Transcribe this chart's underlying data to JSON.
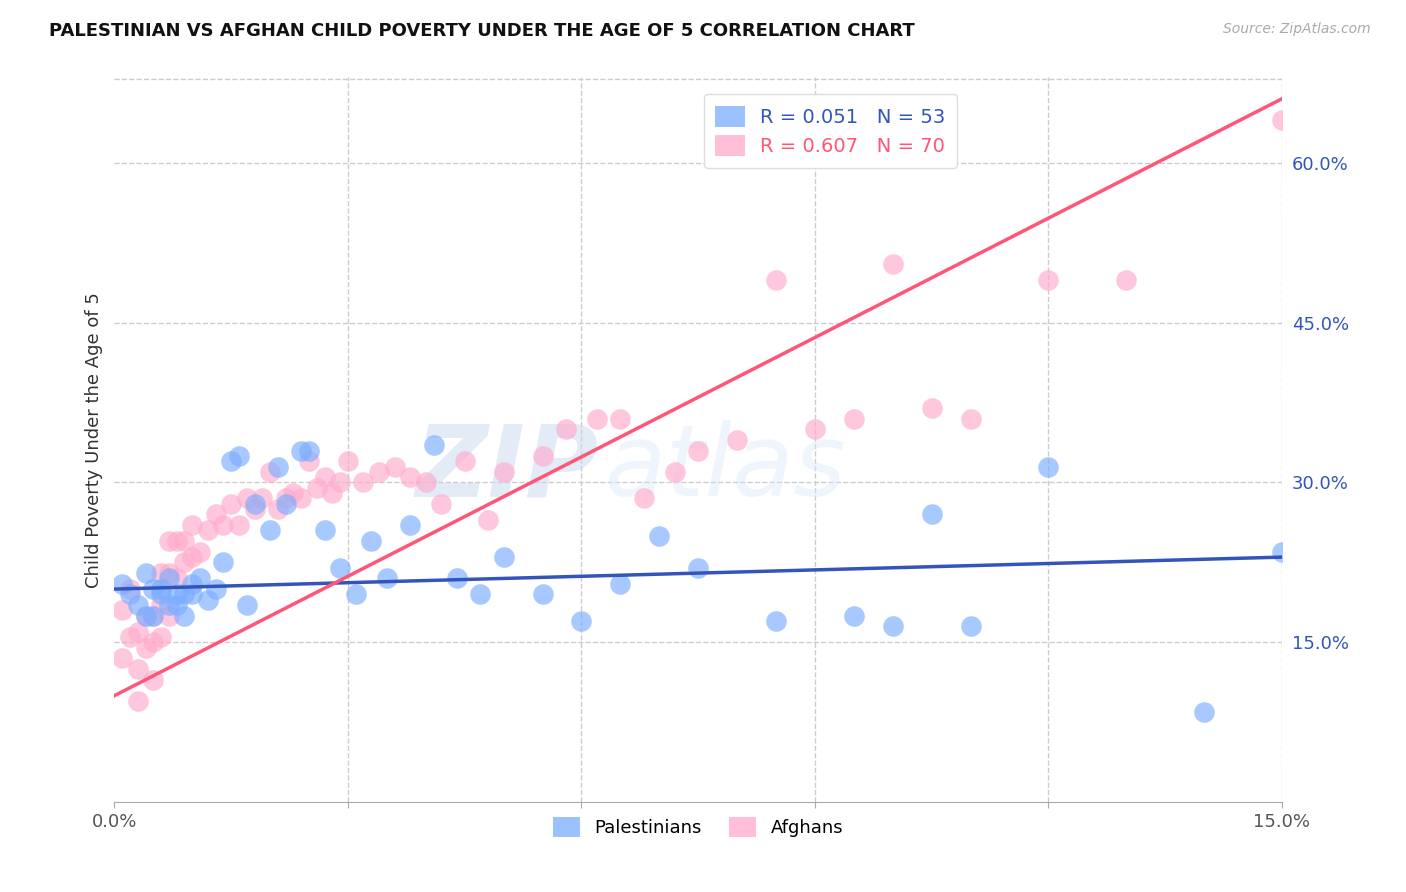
{
  "title": "PALESTINIAN VS AFGHAN CHILD POVERTY UNDER THE AGE OF 5 CORRELATION CHART",
  "source": "Source: ZipAtlas.com",
  "ylabel": "Child Poverty Under the Age of 5",
  "xmin": 0.0,
  "xmax": 0.15,
  "ymin": 0.0,
  "ymax": 0.68,
  "ytick_labels_right": [
    "15.0%",
    "30.0%",
    "45.0%",
    "60.0%"
  ],
  "ytick_vals_right": [
    0.15,
    0.3,
    0.45,
    0.6
  ],
  "grid_color": "#cccccc",
  "background_color": "#ffffff",
  "blue_color": "#7aadff",
  "pink_color": "#ffaacc",
  "line_blue": "#3355bb",
  "line_pink": "#ff5577",
  "legend_r_blue": "R = 0.051",
  "legend_n_blue": "N = 53",
  "legend_r_pink": "R = 0.607",
  "legend_n_pink": "N = 70",
  "watermark_zip": "ZIP",
  "watermark_atlas": "atlas",
  "palestinians_label": "Palestinians",
  "afghans_label": "Afghans",
  "palestinians_x": [
    0.001,
    0.002,
    0.003,
    0.004,
    0.004,
    0.005,
    0.005,
    0.006,
    0.006,
    0.007,
    0.007,
    0.008,
    0.008,
    0.009,
    0.009,
    0.01,
    0.01,
    0.011,
    0.012,
    0.013,
    0.014,
    0.015,
    0.016,
    0.017,
    0.018,
    0.02,
    0.021,
    0.022,
    0.024,
    0.025,
    0.027,
    0.029,
    0.031,
    0.033,
    0.035,
    0.038,
    0.041,
    0.044,
    0.047,
    0.05,
    0.055,
    0.06,
    0.065,
    0.07,
    0.075,
    0.085,
    0.095,
    0.1,
    0.105,
    0.11,
    0.12,
    0.14,
    0.15
  ],
  "palestinians_y": [
    0.205,
    0.195,
    0.185,
    0.175,
    0.215,
    0.175,
    0.2,
    0.195,
    0.2,
    0.21,
    0.185,
    0.185,
    0.195,
    0.195,
    0.175,
    0.195,
    0.205,
    0.21,
    0.19,
    0.2,
    0.225,
    0.32,
    0.325,
    0.185,
    0.28,
    0.255,
    0.315,
    0.28,
    0.33,
    0.33,
    0.255,
    0.22,
    0.195,
    0.245,
    0.21,
    0.26,
    0.335,
    0.21,
    0.195,
    0.23,
    0.195,
    0.17,
    0.205,
    0.25,
    0.22,
    0.17,
    0.175,
    0.165,
    0.27,
    0.165,
    0.315,
    0.085,
    0.235
  ],
  "afghans_x": [
    0.001,
    0.001,
    0.002,
    0.002,
    0.003,
    0.003,
    0.003,
    0.004,
    0.004,
    0.005,
    0.005,
    0.005,
    0.006,
    0.006,
    0.006,
    0.007,
    0.007,
    0.007,
    0.008,
    0.008,
    0.009,
    0.009,
    0.01,
    0.01,
    0.011,
    0.012,
    0.013,
    0.014,
    0.015,
    0.016,
    0.017,
    0.018,
    0.019,
    0.02,
    0.021,
    0.022,
    0.023,
    0.024,
    0.025,
    0.026,
    0.027,
    0.028,
    0.029,
    0.03,
    0.032,
    0.034,
    0.036,
    0.038,
    0.04,
    0.042,
    0.045,
    0.048,
    0.05,
    0.055,
    0.058,
    0.062,
    0.065,
    0.068,
    0.072,
    0.075,
    0.08,
    0.085,
    0.09,
    0.095,
    0.1,
    0.105,
    0.11,
    0.12,
    0.13,
    0.15
  ],
  "afghans_y": [
    0.18,
    0.135,
    0.2,
    0.155,
    0.095,
    0.125,
    0.16,
    0.145,
    0.175,
    0.115,
    0.15,
    0.175,
    0.215,
    0.185,
    0.155,
    0.245,
    0.215,
    0.175,
    0.245,
    0.21,
    0.225,
    0.245,
    0.26,
    0.23,
    0.235,
    0.255,
    0.27,
    0.26,
    0.28,
    0.26,
    0.285,
    0.275,
    0.285,
    0.31,
    0.275,
    0.285,
    0.29,
    0.285,
    0.32,
    0.295,
    0.305,
    0.29,
    0.3,
    0.32,
    0.3,
    0.31,
    0.315,
    0.305,
    0.3,
    0.28,
    0.32,
    0.265,
    0.31,
    0.325,
    0.35,
    0.36,
    0.36,
    0.285,
    0.31,
    0.33,
    0.34,
    0.49,
    0.35,
    0.36,
    0.505,
    0.37,
    0.36,
    0.49,
    0.49,
    0.64
  ]
}
